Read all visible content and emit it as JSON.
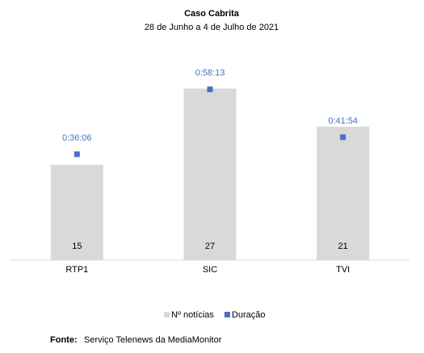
{
  "chart_data": {
    "type": "bar",
    "title": "Caso Cabrita",
    "subtitle": "28 de Junho a 4 de Julho de 2021",
    "categories": [
      "RTP1",
      "SIC",
      "TVI"
    ],
    "series": [
      {
        "name": "Nº notícias",
        "type": "bar",
        "color": "#d9d9d9",
        "values": [
          15,
          27,
          21
        ]
      },
      {
        "name": "Duração",
        "type": "marker",
        "axis": "y2",
        "color": "#4472c4",
        "values": [
          2166,
          3493,
          2514
        ],
        "value_labels": [
          "0:36:06",
          "0:58:13",
          "0:41:54"
        ]
      }
    ],
    "ylim": [
      0,
      30
    ],
    "y2lim": [
      0,
      3900
    ],
    "legend": "bottom",
    "source_label": "Fonte:",
    "source": "Serviço Telenews da MediaMonitor"
  }
}
